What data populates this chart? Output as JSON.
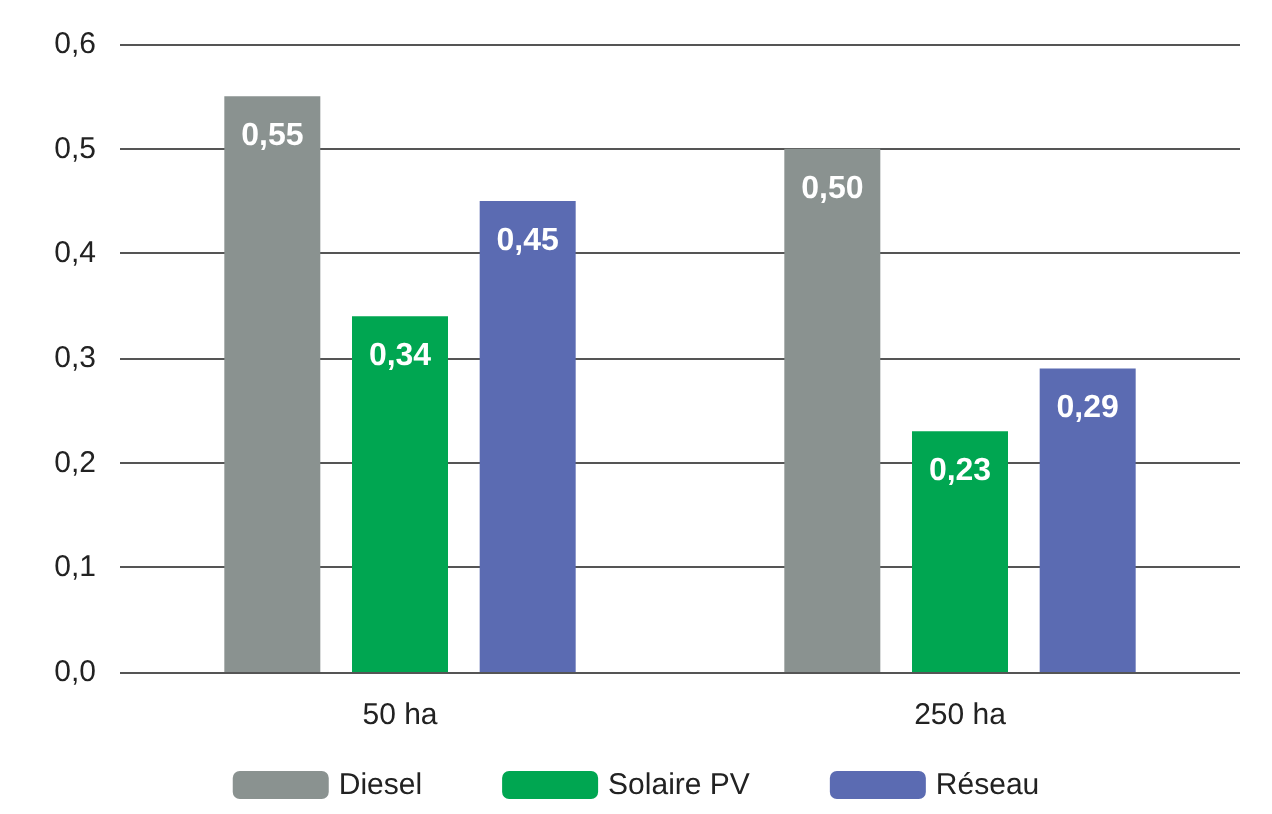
{
  "chart_data": {
    "type": "bar",
    "categories": [
      "50 ha",
      "250 ha"
    ],
    "series": [
      {
        "name": "Diesel",
        "color": "#8a9290",
        "values": [
          0.55,
          0.5
        ],
        "value_labels": [
          "0,55",
          "0,50"
        ]
      },
      {
        "name": "Solaire PV",
        "color": "#00a651",
        "values": [
          0.34,
          0.23
        ],
        "value_labels": [
          "0,34",
          "0,23"
        ]
      },
      {
        "name": "Réseau",
        "color": "#5b6bb2",
        "values": [
          0.45,
          0.29
        ],
        "value_labels": [
          "0,45",
          "0,29"
        ]
      }
    ],
    "ylim": [
      0,
      0.6
    ],
    "yticks": [
      {
        "value": 0,
        "label": "0,0"
      },
      {
        "value": 0.1,
        "label": "0,1"
      },
      {
        "value": 0.2,
        "label": "0,2"
      },
      {
        "value": 0.3,
        "label": "0,3"
      },
      {
        "value": 0.4,
        "label": "0,4"
      },
      {
        "value": 0.5,
        "label": "0,5"
      },
      {
        "value": 0.6,
        "label": "0,6"
      }
    ],
    "grid": "y",
    "legend": "bottom"
  }
}
